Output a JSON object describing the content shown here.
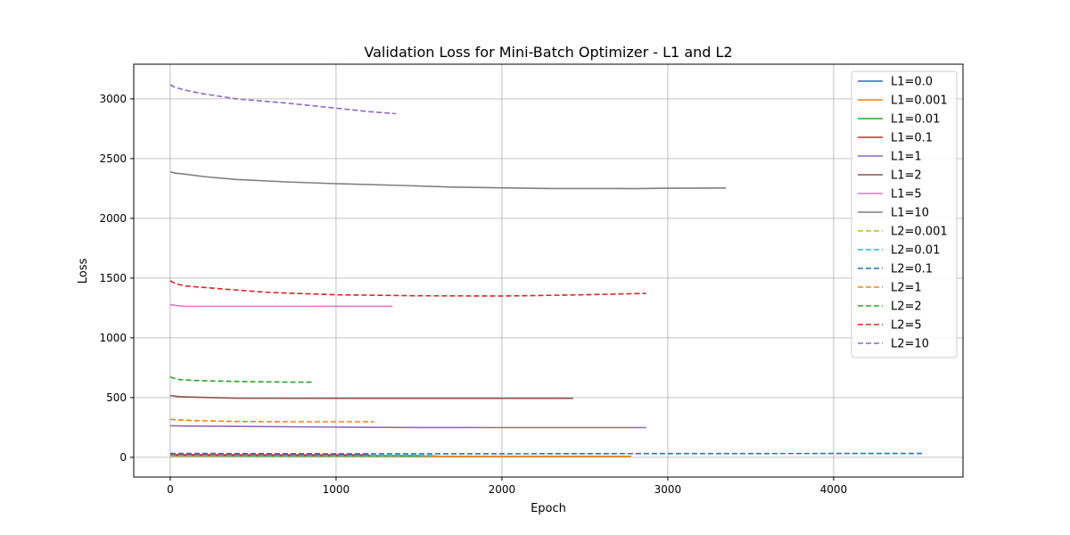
{
  "chart_data": {
    "type": "line",
    "title": "Validation Loss for Mini-Batch Optimizer - L1 and L2",
    "xlabel": "Epoch",
    "ylabel": "Loss",
    "xlim": [
      -220,
      4780
    ],
    "ylim": [
      -165,
      3290
    ],
    "xticks": [
      0,
      1000,
      2000,
      3000,
      4000
    ],
    "yticks": [
      0,
      500,
      1000,
      1500,
      2000,
      2500,
      3000
    ],
    "grid": true,
    "legend_position": "top-right",
    "series": [
      {
        "name": "L1=0.0",
        "color": "#1f77b4",
        "dash": "solid",
        "points": [
          [
            0,
            14
          ],
          [
            500,
            12
          ],
          [
            1000,
            11
          ],
          [
            1600,
            11
          ]
        ]
      },
      {
        "name": "L1=0.001",
        "color": "#ff7f0e",
        "dash": "solid",
        "points": [
          [
            0,
            10
          ],
          [
            1000,
            9
          ],
          [
            2000,
            8
          ],
          [
            2780,
            8
          ]
        ]
      },
      {
        "name": "L1=0.01",
        "color": "#2ca02c",
        "dash": "solid",
        "points": [
          [
            0,
            18
          ],
          [
            500,
            15
          ],
          [
            1000,
            14
          ],
          [
            1500,
            14
          ]
        ]
      },
      {
        "name": "L1=0.1",
        "color": "#d62728",
        "dash": "solid",
        "points": [
          [
            0,
            22
          ],
          [
            600,
            20
          ],
          [
            1200,
            20
          ]
        ]
      },
      {
        "name": "L1=1",
        "color": "#9467bd",
        "dash": "solid",
        "points": [
          [
            0,
            265
          ],
          [
            100,
            262
          ],
          [
            500,
            258
          ],
          [
            1000,
            253
          ],
          [
            1500,
            250
          ],
          [
            2000,
            249
          ],
          [
            2500,
            249
          ],
          [
            2870,
            249
          ]
        ]
      },
      {
        "name": "L1=2",
        "color": "#8c564b",
        "dash": "solid",
        "points": [
          [
            0,
            518
          ],
          [
            50,
            508
          ],
          [
            100,
            505
          ],
          [
            400,
            495
          ],
          [
            1000,
            494
          ],
          [
            1500,
            494
          ],
          [
            2000,
            494
          ],
          [
            2430,
            494
          ]
        ]
      },
      {
        "name": "L1=5",
        "color": "#e377c2",
        "dash": "solid",
        "points": [
          [
            0,
            1278
          ],
          [
            40,
            1270
          ],
          [
            80,
            1265
          ],
          [
            300,
            1264
          ],
          [
            800,
            1264
          ],
          [
            1340,
            1265
          ]
        ]
      },
      {
        "name": "L1=10",
        "color": "#7f7f7f",
        "dash": "solid",
        "points": [
          [
            0,
            2390
          ],
          [
            30,
            2378
          ],
          [
            100,
            2368
          ],
          [
            200,
            2350
          ],
          [
            400,
            2325
          ],
          [
            700,
            2305
          ],
          [
            1000,
            2290
          ],
          [
            1400,
            2275
          ],
          [
            1700,
            2262
          ],
          [
            2000,
            2255
          ],
          [
            2300,
            2250
          ],
          [
            2500,
            2250
          ],
          [
            2700,
            2250
          ],
          [
            2800,
            2248
          ],
          [
            3000,
            2252
          ],
          [
            3350,
            2254
          ]
        ]
      },
      {
        "name": "L2=0.001",
        "color": "#bcbd22",
        "dash": "dashed",
        "points": [
          [
            0,
            12
          ],
          [
            500,
            11
          ],
          [
            1000,
            10
          ],
          [
            1400,
            10
          ]
        ]
      },
      {
        "name": "L2=0.01",
        "color": "#17becf",
        "dash": "dashed",
        "points": [
          [
            0,
            16
          ],
          [
            500,
            14
          ],
          [
            1000,
            13
          ],
          [
            1600,
            13
          ]
        ]
      },
      {
        "name": "L2=0.1",
        "color": "#1f77b4",
        "dash": "dashed",
        "points": [
          [
            0,
            33
          ],
          [
            500,
            31
          ],
          [
            1000,
            30
          ],
          [
            2000,
            30
          ],
          [
            3000,
            31
          ],
          [
            4000,
            32
          ],
          [
            4540,
            32
          ]
        ]
      },
      {
        "name": "L2=1",
        "color": "#ff7f0e",
        "dash": "dashed",
        "points": [
          [
            0,
            318
          ],
          [
            50,
            313
          ],
          [
            150,
            307
          ],
          [
            400,
            300
          ],
          [
            700,
            298
          ],
          [
            1000,
            298
          ],
          [
            1230,
            298
          ]
        ]
      },
      {
        "name": "L2=2",
        "color": "#2ca02c",
        "dash": "dashed",
        "points": [
          [
            0,
            672
          ],
          [
            25,
            660
          ],
          [
            60,
            650
          ],
          [
            150,
            643
          ],
          [
            300,
            638
          ],
          [
            500,
            633
          ],
          [
            700,
            630
          ],
          [
            860,
            629
          ]
        ]
      },
      {
        "name": "L2=5",
        "color": "#d62728",
        "dash": "dashed",
        "points": [
          [
            0,
            1478
          ],
          [
            20,
            1462
          ],
          [
            50,
            1447
          ],
          [
            100,
            1433
          ],
          [
            200,
            1422
          ],
          [
            400,
            1400
          ],
          [
            600,
            1380
          ],
          [
            1000,
            1360
          ],
          [
            1500,
            1352
          ],
          [
            2000,
            1350
          ],
          [
            2500,
            1360
          ],
          [
            2870,
            1372
          ]
        ]
      },
      {
        "name": "L2=10",
        "color": "#9467bd",
        "dash": "dashed",
        "points": [
          [
            0,
            3118
          ],
          [
            30,
            3095
          ],
          [
            100,
            3070
          ],
          [
            200,
            3042
          ],
          [
            400,
            3000
          ],
          [
            700,
            2965
          ],
          [
            1000,
            2922
          ],
          [
            1200,
            2893
          ],
          [
            1360,
            2876
          ]
        ]
      }
    ]
  }
}
